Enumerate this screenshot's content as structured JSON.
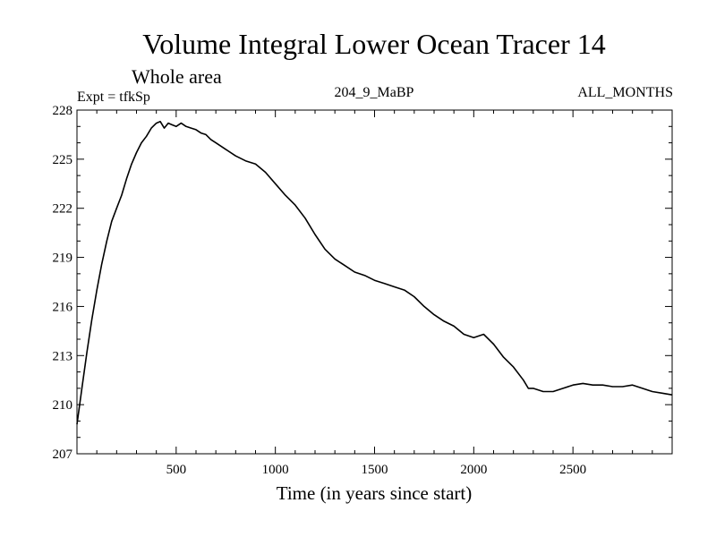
{
  "chart_data": {
    "type": "line",
    "title": "Volume Integral Lower Ocean Tracer 14",
    "subtitle": "Whole area",
    "expt_label": "Expt = tfkSp",
    "center_label": "204_9_MaBP",
    "right_label": "ALL_MONTHS",
    "xlabel": "Time (in years since start)",
    "ylabel": "",
    "xlim": [
      0,
      3000
    ],
    "ylim": [
      207,
      228
    ],
    "x_ticks": [
      500,
      1000,
      1500,
      2000,
      2500
    ],
    "y_ticks": [
      207,
      210,
      213,
      216,
      219,
      222,
      225,
      228
    ],
    "grid": false,
    "series": [
      {
        "name": "Lower Ocean Tracer 14",
        "x": [
          0,
          25,
          50,
          75,
          100,
          125,
          150,
          175,
          200,
          225,
          250,
          275,
          300,
          325,
          350,
          375,
          400,
          420,
          440,
          460,
          480,
          500,
          525,
          550,
          575,
          600,
          625,
          650,
          675,
          700,
          750,
          800,
          850,
          900,
          950,
          1000,
          1050,
          1100,
          1150,
          1200,
          1250,
          1300,
          1350,
          1400,
          1450,
          1500,
          1550,
          1600,
          1650,
          1700,
          1750,
          1800,
          1850,
          1900,
          1950,
          2000,
          2050,
          2100,
          2150,
          2200,
          2250,
          2275,
          2300,
          2350,
          2400,
          2450,
          2500,
          2550,
          2600,
          2650,
          2700,
          2750,
          2800,
          2850,
          2900,
          2950,
          3000
        ],
        "values": [
          208.8,
          211.0,
          213.2,
          215.2,
          217.0,
          218.6,
          220.0,
          221.2,
          222.0,
          222.8,
          223.8,
          224.7,
          225.4,
          226.0,
          226.4,
          226.9,
          227.2,
          227.3,
          226.9,
          227.2,
          227.1,
          227.0,
          227.2,
          227.0,
          226.9,
          226.8,
          226.6,
          226.5,
          226.2,
          226.0,
          225.6,
          225.2,
          224.9,
          224.7,
          224.2,
          223.5,
          222.8,
          222.2,
          221.4,
          220.4,
          219.5,
          218.9,
          218.5,
          218.1,
          217.9,
          217.6,
          217.4,
          217.2,
          217.0,
          216.6,
          216.0,
          215.5,
          215.1,
          214.8,
          214.3,
          214.1,
          214.3,
          213.7,
          212.9,
          212.3,
          211.5,
          211.0,
          211.0,
          210.8,
          210.8,
          211.0,
          211.2,
          211.3,
          211.2,
          211.2,
          211.1,
          211.1,
          211.2,
          211.0,
          210.8,
          210.7,
          210.6
        ]
      }
    ]
  }
}
